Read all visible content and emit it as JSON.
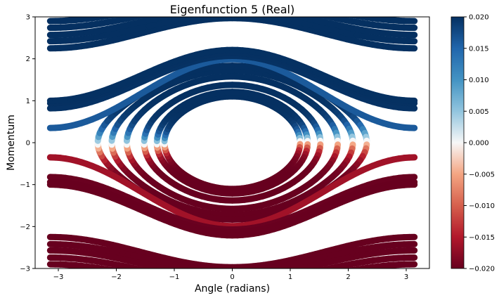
{
  "chart_data": {
    "type": "scatter",
    "title": "Eigenfunction 5 (Real)",
    "xlabel": "Angle (radians)",
    "ylabel": "Momentum",
    "xlim": [
      -3.4,
      3.4
    ],
    "ylim": [
      -3,
      3
    ],
    "x_ticks": [
      -3,
      -2,
      -1,
      0,
      1,
      2,
      3
    ],
    "y_ticks": [
      -3,
      -2,
      -1,
      0,
      1,
      2,
      3
    ],
    "grid": false,
    "colormap": "RdBu",
    "colorbar": {
      "range": [
        -0.02,
        0.02
      ],
      "ticks": [
        "0.020",
        "0.015",
        "0.010",
        "0.005",
        "0.000",
        "−0.005",
        "−0.010",
        "−0.015",
        "−0.020"
      ]
    },
    "colors": {
      "positive": "#053061",
      "zero": "#f7f7f7",
      "negative": "#67001f"
    },
    "orbits": {
      "closed": [
        {
          "turning_angle": 1.17
        },
        {
          "turning_angle": 1.3
        },
        {
          "turning_angle": 1.52
        },
        {
          "turning_angle": 1.82
        },
        {
          "turning_angle": 2.08
        },
        {
          "turning_angle": 2.32
        }
      ],
      "open": [
        {
          "p_at_pi": 0.35,
          "p_at_0": 1.99
        },
        {
          "p_at_pi": 0.82,
          "p_at_0": 2.07
        },
        {
          "p_at_pi": 0.94,
          "p_at_0": 2.14
        },
        {
          "p_at_pi": 1.0,
          "p_at_0": 2.21
        },
        {
          "p_at_pi": 2.25,
          "p_at_0": 2.97
        },
        {
          "p_at_pi": 2.42,
          "p_at_0": 3.06
        },
        {
          "p_at_pi": 2.57,
          "p_at_0": 3.19
        },
        {
          "p_at_pi": 2.74,
          "p_at_0": 3.32
        },
        {
          "p_at_pi": 2.9,
          "p_at_0": 3.45
        }
      ]
    }
  }
}
